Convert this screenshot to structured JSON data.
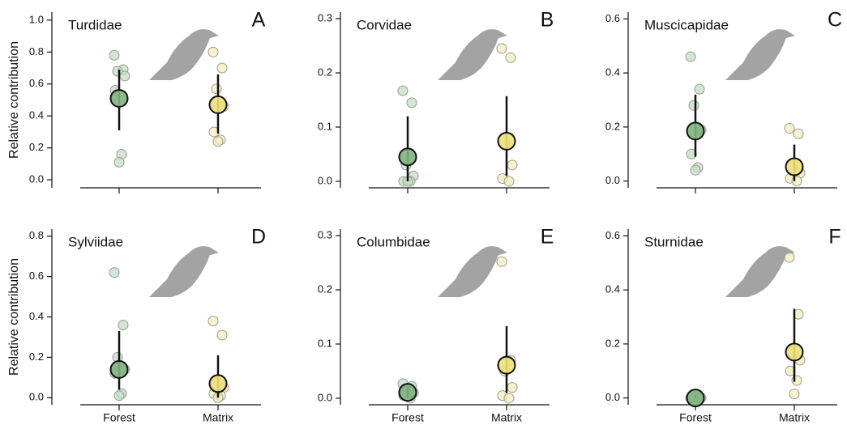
{
  "chart_data": [
    {
      "type": "strip",
      "title": "Turdidae",
      "panel": "A",
      "ylabel": "Relative contribution",
      "categories": [
        null,
        null
      ],
      "ylim": [
        -0.05,
        1.05
      ],
      "yticks": [
        {
          "value": 0,
          "label": "0.0"
        },
        0.2,
        0.4,
        0.6,
        0.8,
        {
          "value": 1,
          "label": "1.0"
        }
      ],
      "groups": [
        {
          "color": "#7fb27f",
          "point_color": "#c3ddc3",
          "points": [
            0.78,
            0.69,
            0.68,
            0.65,
            0.56,
            0.16,
            0.11
          ],
          "mean": 0.51,
          "ci": [
            0.31,
            0.69
          ]
        },
        {
          "color": "#efe07a",
          "point_color": "#f4edb8",
          "points": [
            0.8,
            0.7,
            0.57,
            0.46,
            0.3,
            0.25,
            0.24
          ],
          "mean": 0.47,
          "ci": [
            0.29,
            0.66
          ]
        }
      ]
    },
    {
      "type": "strip",
      "title": "Corvidae",
      "panel": "B",
      "categories": [
        null,
        null
      ],
      "ylim": [
        -0.012,
        0.312
      ],
      "yticks": [
        {
          "value": 0,
          "label": "0.0"
        },
        0.1,
        0.2,
        0.3
      ],
      "groups": [
        {
          "color": "#7fb27f",
          "point_color": "#c3ddc3",
          "points": [
            0.167,
            0.145,
            0.03,
            0.01,
            0.0,
            0.0,
            0.0
          ],
          "mean": 0.045,
          "ci": [
            0.0,
            0.12
          ]
        },
        {
          "color": "#efe07a",
          "point_color": "#f4edb8",
          "points": [
            0.245,
            0.228,
            0.07,
            0.03,
            0.005,
            0.0
          ],
          "mean": 0.074,
          "ci": [
            0.01,
            0.157
          ]
        }
      ]
    },
    {
      "type": "strip",
      "title": "Muscicapidae",
      "panel": "C",
      "categories": [
        null,
        null
      ],
      "ylim": [
        -0.025,
        0.625
      ],
      "yticks": [
        {
          "value": 0,
          "label": "0.0"
        },
        0.2,
        0.4,
        0.6
      ],
      "groups": [
        {
          "color": "#7fb27f",
          "point_color": "#c3ddc3",
          "points": [
            0.46,
            0.34,
            0.28,
            0.19,
            0.1,
            0.05,
            0.04
          ],
          "mean": 0.185,
          "ci": [
            0.09,
            0.32
          ]
        },
        {
          "color": "#efe07a",
          "point_color": "#f4edb8",
          "points": [
            0.195,
            0.175,
            0.06,
            0.03,
            0.01,
            0.0
          ],
          "mean": 0.053,
          "ci": [
            0.0,
            0.135
          ]
        }
      ]
    },
    {
      "type": "strip",
      "title": "Sylviidae",
      "panel": "D",
      "ylabel": "Relative contribution",
      "categories": [
        "Forest",
        "Matrix"
      ],
      "ylim": [
        -0.035,
        0.835
      ],
      "yticks": [
        {
          "value": 0,
          "label": "0.0"
        },
        0.2,
        0.4,
        0.6,
        0.8
      ],
      "groups": [
        {
          "color": "#7fb27f",
          "point_color": "#c3ddc3",
          "points": [
            0.62,
            0.36,
            0.2,
            0.14,
            0.12,
            0.02,
            0.01
          ],
          "mean": 0.14,
          "ci": [
            0.04,
            0.33
          ]
        },
        {
          "color": "#efe07a",
          "point_color": "#f4edb8",
          "points": [
            0.38,
            0.31,
            0.07,
            0.05,
            0.02,
            0.01,
            0.0
          ],
          "mean": 0.07,
          "ci": [
            0.0,
            0.21
          ]
        }
      ]
    },
    {
      "type": "strip",
      "title": "Columbidae",
      "panel": "E",
      "categories": [
        "Forest",
        "Matrix"
      ],
      "ylim": [
        -0.012,
        0.312
      ],
      "yticks": [
        {
          "value": 0,
          "label": "0.0"
        },
        0.1,
        0.2,
        0.3
      ],
      "groups": [
        {
          "color": "#7fb27f",
          "point_color": "#c3ddc3",
          "points": [
            0.027,
            0.022,
            0.015,
            0.01,
            0.005,
            0.0
          ],
          "mean": 0.011,
          "ci": [
            0.0,
            0.02
          ]
        },
        {
          "color": "#efe07a",
          "point_color": "#f4edb8",
          "points": [
            0.252,
            0.07,
            0.05,
            0.02,
            0.005,
            0.0
          ],
          "mean": 0.061,
          "ci": [
            0.01,
            0.133
          ]
        }
      ]
    },
    {
      "type": "strip",
      "title": "Sturnidae",
      "panel": "F",
      "categories": [
        "Forest",
        "Matrix"
      ],
      "ylim": [
        -0.025,
        0.625
      ],
      "yticks": [
        {
          "value": 0,
          "label": "0.0"
        },
        0.2,
        0.4,
        0.6
      ],
      "groups": [
        {
          "color": "#7fb27f",
          "point_color": "#c3ddc3",
          "points": [
            0.0,
            0.0,
            0.0,
            0.0
          ],
          "mean": 0.0,
          "ci": [
            0.0,
            0.01
          ]
        },
        {
          "color": "#efe07a",
          "point_color": "#f4edb8",
          "points": [
            0.52,
            0.31,
            0.17,
            0.14,
            0.1,
            0.065,
            0.015
          ],
          "mean": 0.17,
          "ci": [
            0.06,
            0.33
          ]
        }
      ]
    }
  ]
}
